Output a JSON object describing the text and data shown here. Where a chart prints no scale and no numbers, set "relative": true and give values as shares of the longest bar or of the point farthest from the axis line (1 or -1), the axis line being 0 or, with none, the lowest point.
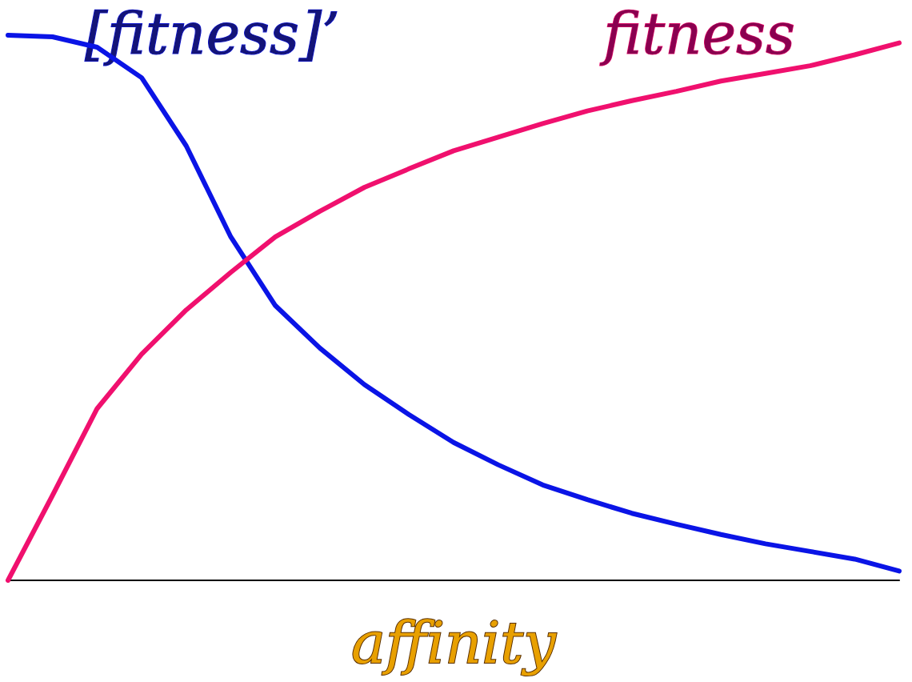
{
  "chart_data": {
    "type": "line",
    "xlabel": "affinity",
    "relative": true,
    "legend": false,
    "grid": false,
    "marker": "none",
    "line_style": "solid",
    "categories": [
      null,
      null,
      null,
      null,
      null,
      null,
      null,
      null,
      null,
      null,
      null,
      null,
      null,
      null,
      null,
      null,
      null,
      null,
      null,
      null,
      null
    ],
    "series": [
      {
        "name": "[fitness]’",
        "color": "#0a14e6",
        "values": [
          1.0,
          0.997,
          0.978,
          0.922,
          0.797,
          0.63,
          0.504,
          0.426,
          0.359,
          0.304,
          0.253,
          0.212,
          0.175,
          0.148,
          0.123,
          0.103,
          0.084,
          0.067,
          0.053,
          0.039,
          0.017
        ]
      },
      {
        "name": "fitness",
        "color": "#f0106e",
        "values": [
          0,
          0.156,
          0.315,
          0.415,
          0.496,
          0.565,
          0.63,
          0.677,
          0.721,
          0.755,
          0.788,
          0.813,
          0.838,
          0.861,
          0.88,
          0.897,
          0.916,
          0.93,
          0.944,
          0.964,
          0.986
        ]
      }
    ]
  }
}
